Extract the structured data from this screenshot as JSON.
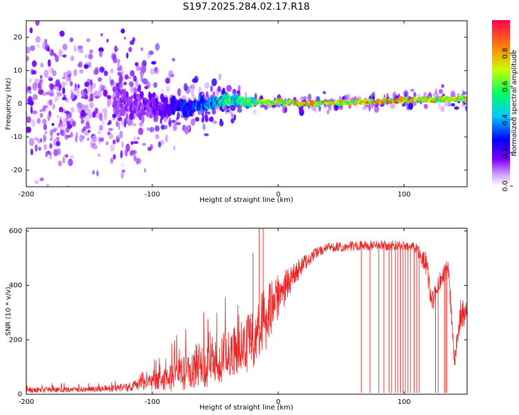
{
  "figure": {
    "title": "S197.2025.284.02.17.R18"
  },
  "chart_data": [
    {
      "type": "heatmap",
      "title": "S197.2025.284.02.17.R18",
      "xlabel": "Height of straight line (km)",
      "ylabel": "Frequency (Hz)",
      "xlim": [
        -200,
        150
      ],
      "ylim": [
        -25,
        25
      ],
      "xticks": [
        -200,
        -100,
        0,
        100
      ],
      "xtick_labels": [
        "-200",
        "-100",
        "0",
        "100"
      ],
      "yticks": [
        -20,
        -10,
        0,
        10,
        20
      ],
      "ytick_labels": [
        "-20",
        "-10",
        "0",
        "10",
        "20"
      ],
      "colorbar": {
        "label": "Normalized spectral amplitude",
        "range": [
          0,
          1
        ],
        "ticks": [
          0,
          0.2,
          0.4,
          0.6,
          0.8
        ],
        "tick_labels": [
          "0.0",
          "0.2",
          "0.4",
          "0.6",
          "0.8"
        ],
        "colormap": [
          "#ffffff",
          "#9b00ff",
          "#0000ff",
          "#00c8ff",
          "#00ff80",
          "#ffff00",
          "#ff8000",
          "#ff0040"
        ]
      },
      "ridge": {
        "x": [
          -120,
          -100,
          -80,
          -60,
          -40,
          -20,
          0,
          20,
          40,
          60,
          80,
          100,
          120,
          150
        ],
        "frequency": [
          0.0,
          -0.5,
          -1.0,
          -0.5,
          1.0,
          0.5,
          0.5,
          0.0,
          0.3,
          0.5,
          0.8,
          1.0,
          1.2,
          1.5
        ],
        "amplitude": [
          0.15,
          0.2,
          0.3,
          0.45,
          0.6,
          0.75,
          0.85,
          0.95,
          0.9,
          0.85,
          0.95,
          0.95,
          0.9,
          0.85
        ]
      },
      "noise_spread_hz": {
        "x": [
          -200,
          -120,
          -80,
          -40,
          0,
          50,
          150
        ],
        "halfwidth": [
          25,
          25,
          12,
          7,
          3,
          3,
          4
        ]
      }
    },
    {
      "type": "line",
      "xlabel": "Height of straight line (km)",
      "ylabel": "SNR (10 * v/v)",
      "xlim": [
        -200,
        150
      ],
      "ylim": [
        0,
        610
      ],
      "xticks": [
        -200,
        -100,
        0,
        100
      ],
      "xtick_labels": [
        "-200",
        "-100",
        "0",
        "100"
      ],
      "yticks": [
        0,
        200,
        400,
        600
      ],
      "ytick_labels": [
        "0",
        "200",
        "400",
        "600"
      ],
      "color": "#ee2222",
      "envelope": {
        "x": [
          -200,
          -150,
          -120,
          -100,
          -80,
          -60,
          -40,
          -20,
          -10,
          0,
          10,
          20,
          30,
          40,
          60,
          80,
          100,
          110,
          118,
          122,
          128,
          135,
          140,
          145,
          150
        ],
        "mean": [
          15,
          18,
          25,
          45,
          70,
          100,
          140,
          200,
          280,
          360,
          420,
          480,
          520,
          540,
          545,
          548,
          545,
          535,
          470,
          330,
          420,
          470,
          120,
          300,
          300
        ],
        "noise": [
          10,
          10,
          15,
          30,
          60,
          80,
          90,
          110,
          120,
          80,
          50,
          30,
          20,
          18,
          18,
          18,
          18,
          20,
          50,
          50,
          40,
          40,
          30,
          60,
          60
        ]
      },
      "spikes": [
        {
          "x": -15,
          "y": 610
        },
        {
          "x": -12,
          "y": 610
        },
        {
          "x": -20,
          "y": 520
        }
      ],
      "dropouts": [
        66,
        73,
        80,
        84,
        88,
        90,
        93,
        95,
        97,
        99,
        101,
        103,
        105,
        108,
        110,
        112,
        125,
        127,
        132,
        133,
        134
      ]
    }
  ]
}
